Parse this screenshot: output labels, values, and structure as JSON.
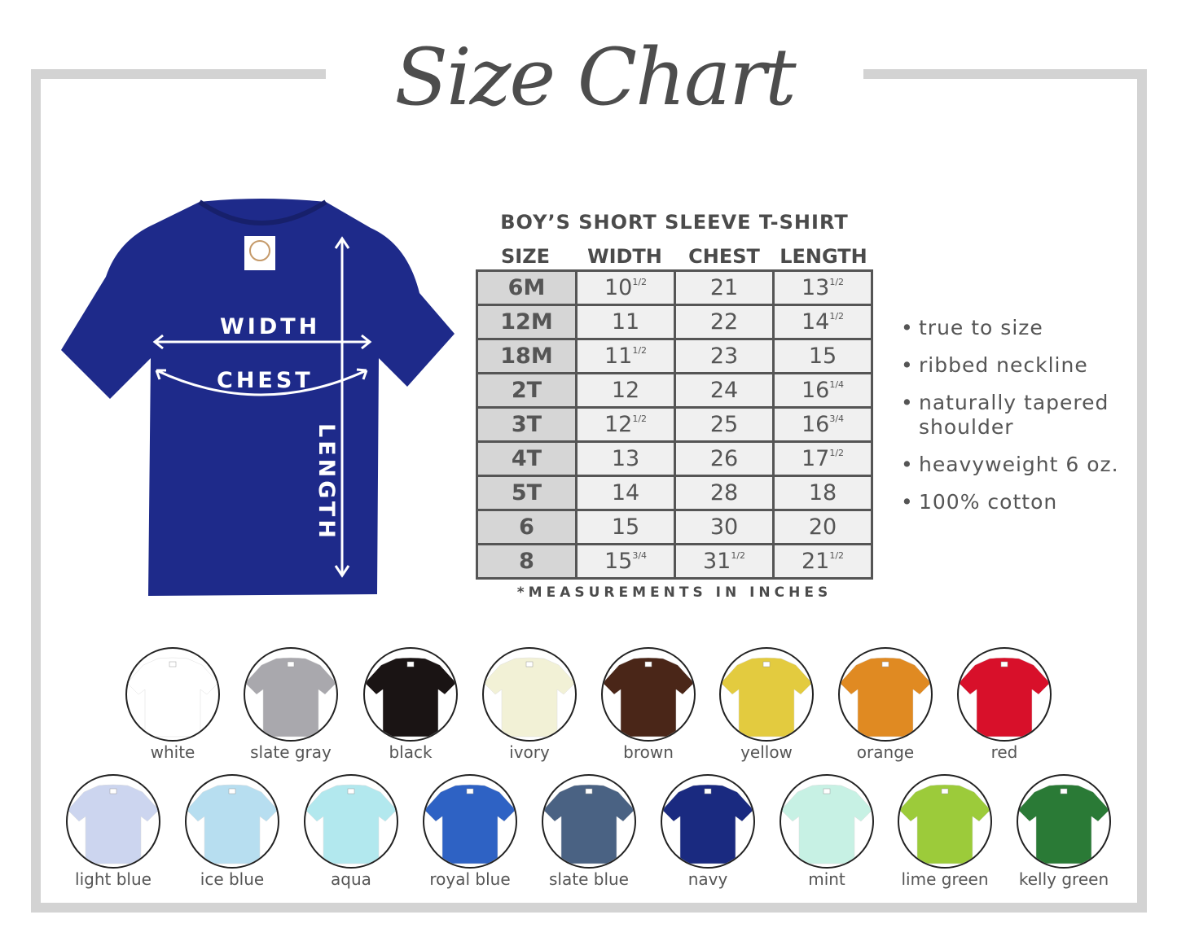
{
  "title": "Size Chart",
  "diagram": {
    "shirt_color": "#1e2a8a",
    "width_label": "WIDTH",
    "chest_label": "CHEST",
    "length_label": "LENGTH"
  },
  "table": {
    "title": "BOY’S SHORT SLEEVE T-SHIRT",
    "headers": [
      "SIZE",
      "WIDTH",
      "CHEST",
      "LENGTH"
    ],
    "rows": [
      [
        "6M",
        [
          "10",
          "1/2"
        ],
        [
          "21",
          ""
        ],
        [
          "13",
          "1/2"
        ]
      ],
      [
        "12M",
        [
          "11",
          ""
        ],
        [
          "22",
          ""
        ],
        [
          "14",
          "1/2"
        ]
      ],
      [
        "18M",
        [
          "11",
          "1/2"
        ],
        [
          "23",
          ""
        ],
        [
          "15",
          ""
        ]
      ],
      [
        "2T",
        [
          "12",
          ""
        ],
        [
          "24",
          ""
        ],
        [
          "16",
          "1/4"
        ]
      ],
      [
        "3T",
        [
          "12",
          "1/2"
        ],
        [
          "25",
          ""
        ],
        [
          "16",
          "3/4"
        ]
      ],
      [
        "4T",
        [
          "13",
          ""
        ],
        [
          "26",
          ""
        ],
        [
          "17",
          "1/2"
        ]
      ],
      [
        "5T",
        [
          "14",
          ""
        ],
        [
          "28",
          ""
        ],
        [
          "18",
          ""
        ]
      ],
      [
        "6",
        [
          "15",
          ""
        ],
        [
          "30",
          ""
        ],
        [
          "20",
          ""
        ]
      ],
      [
        "8",
        [
          "15",
          "3/4"
        ],
        [
          "31",
          "1/2"
        ],
        [
          "21",
          "1/2"
        ]
      ]
    ],
    "note": "*MEASUREMENTS IN INCHES"
  },
  "features": [
    "true to size",
    "ribbed neckline",
    "naturally tapered shoulder",
    "heavyweight 6 oz.",
    "100% cotton"
  ],
  "colors": [
    {
      "name": "white",
      "hex": "#ffffff"
    },
    {
      "name": "slate gray",
      "hex": "#a9a8ad"
    },
    {
      "name": "black",
      "hex": "#1a1414"
    },
    {
      "name": "ivory",
      "hex": "#f2f1d6"
    },
    {
      "name": "brown",
      "hex": "#4a2618"
    },
    {
      "name": "yellow",
      "hex": "#e3cb3f"
    },
    {
      "name": "orange",
      "hex": "#e08a22"
    },
    {
      "name": "red",
      "hex": "#d8102a"
    },
    {
      "name": "light blue",
      "hex": "#ccd5ef"
    },
    {
      "name": "ice blue",
      "hex": "#b7def0"
    },
    {
      "name": "aqua",
      "hex": "#b2e8ee"
    },
    {
      "name": "royal blue",
      "hex": "#2e62c4"
    },
    {
      "name": "slate blue",
      "hex": "#4a6283"
    },
    {
      "name": "navy",
      "hex": "#1a2a80"
    },
    {
      "name": "mint",
      "hex": "#c7f1e4"
    },
    {
      "name": "lime green",
      "hex": "#9ccb3a"
    },
    {
      "name": "kelly green",
      "hex": "#2a7a36"
    }
  ]
}
